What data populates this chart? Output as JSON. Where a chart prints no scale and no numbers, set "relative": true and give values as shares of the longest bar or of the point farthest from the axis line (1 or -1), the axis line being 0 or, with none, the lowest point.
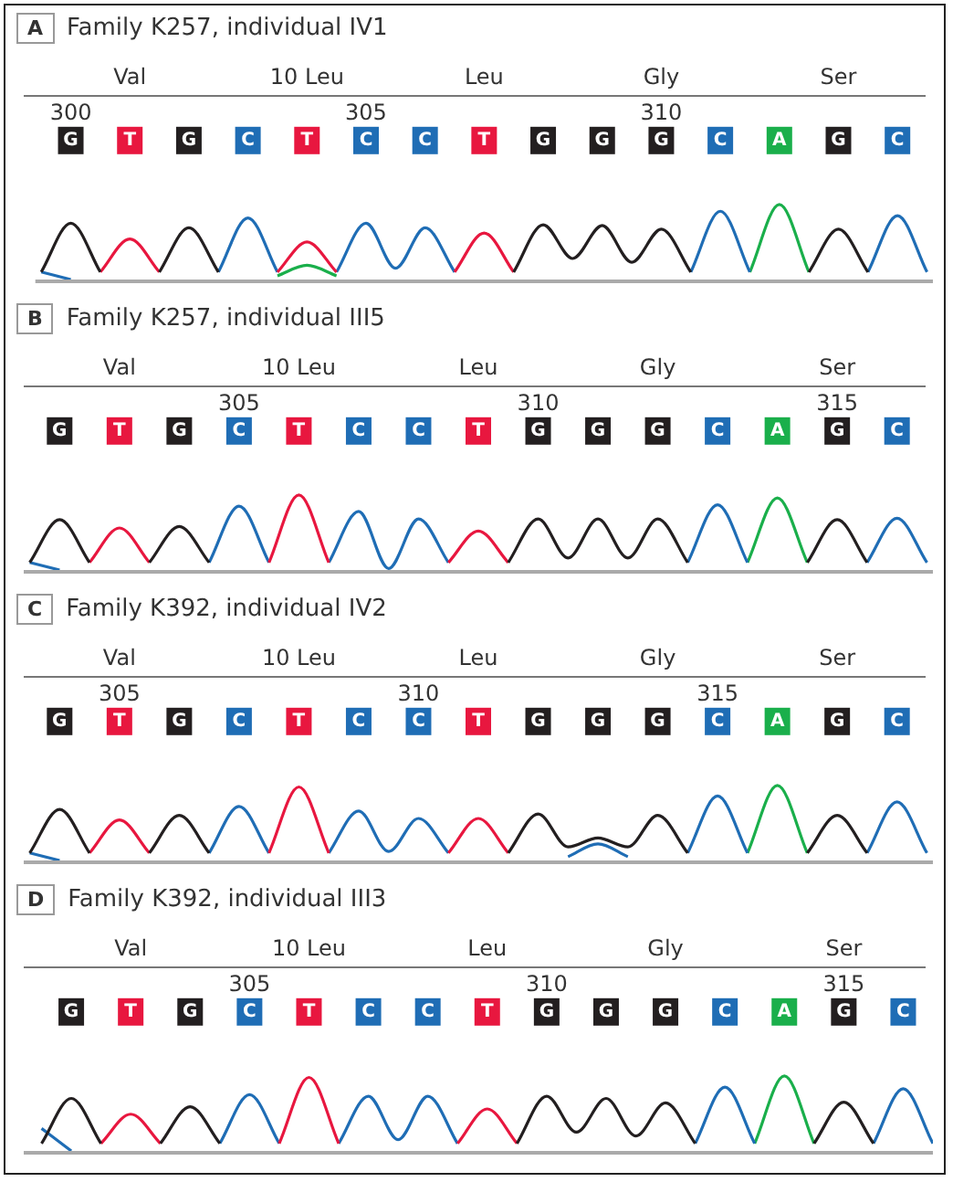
{
  "chart_data": [
    {
      "type": "line",
      "relative": true,
      "marker": "none",
      "title": "Family K257, individual IV1",
      "xlim": [
        299.4,
        314.6
      ],
      "xticks": [
        300,
        305,
        310
      ],
      "x": [
        299.5,
        300,
        300.5,
        301,
        301.5,
        302,
        302.5,
        303,
        303.5,
        304,
        304.5,
        305,
        305.5,
        306,
        306.5,
        307,
        307.5,
        308,
        308.5,
        309,
        309.5,
        310,
        310.5,
        311,
        311.5,
        312,
        312.5,
        313,
        313.5,
        314,
        314.5
      ],
      "series": [
        {
          "color": "#231f20",
          "values": [
            0.1,
            0.75,
            0.1,
            null,
            0.1,
            0.69,
            0.1,
            null,
            null,
            null,
            null,
            null,
            null,
            null,
            null,
            null,
            0.1,
            0.73,
            0.28,
            0.72,
            0.23,
            0.67,
            0.1,
            null,
            null,
            null,
            0.1,
            0.67,
            0.1,
            null,
            null
          ]
        },
        {
          "color": "#e8173f",
          "values": [
            null,
            null,
            0.1,
            0.54,
            0.1,
            null,
            null,
            null,
            0.1,
            0.5,
            0.1,
            null,
            null,
            null,
            0.1,
            0.62,
            0.1,
            null,
            null,
            null,
            null,
            null,
            null,
            null,
            null,
            null,
            null,
            null,
            null,
            null,
            null
          ]
        },
        {
          "color": "#1f6db5",
          "values": [
            0.1,
            0,
            null,
            null,
            null,
            null,
            0.1,
            0.82,
            0.1,
            null,
            0.1,
            0.75,
            0.15,
            0.69,
            0.1,
            null,
            null,
            null,
            null,
            null,
            null,
            null,
            0.1,
            0.91,
            0.1,
            null,
            null,
            null,
            0.1,
            0.85,
            0.1
          ]
        },
        {
          "color": "#1aaf4b",
          "values": [
            null,
            null,
            null,
            null,
            null,
            null,
            null,
            null,
            0.05,
            0.19,
            0.05,
            null,
            null,
            null,
            null,
            null,
            null,
            null,
            null,
            null,
            null,
            null,
            null,
            null,
            0.1,
            1,
            0.1,
            null,
            null,
            null,
            null
          ]
        }
      ],
      "annotations": [
        "A",
        "Val",
        "10 Leu",
        "Leu",
        "Gly",
        "Ser",
        "G",
        "T",
        "G",
        "C",
        "T",
        "C",
        "C",
        "T",
        "G",
        "G",
        "G",
        "C",
        "A",
        "G",
        "C"
      ]
    },
    {
      "type": "line",
      "relative": true,
      "marker": "none",
      "title": "Family K257, individual III5",
      "xlim": [
        301.4,
        316.6
      ],
      "xticks": [
        305,
        310,
        315
      ],
      "x": [
        301.5,
        302,
        302.5,
        303,
        303.5,
        304,
        304.5,
        305,
        305.5,
        306,
        306.5,
        307,
        307.5,
        308,
        308.5,
        309,
        309.5,
        310,
        310.5,
        311,
        311.5,
        312,
        312.5,
        313,
        313.5,
        314,
        314.5,
        315,
        315.5,
        316,
        316.5
      ],
      "series": [
        {
          "color": "#231f20",
          "values": [
            0.1,
            0.67,
            0.1,
            null,
            0.1,
            0.58,
            0.1,
            null,
            null,
            null,
            null,
            null,
            null,
            null,
            null,
            null,
            0.1,
            0.68,
            0.16,
            0.68,
            0.16,
            0.68,
            0.1,
            null,
            null,
            null,
            0.1,
            0.67,
            0.1,
            null,
            null
          ]
        },
        {
          "color": "#e8173f",
          "values": [
            null,
            null,
            0.1,
            0.56,
            0.1,
            null,
            null,
            null,
            0.1,
            1,
            0.1,
            null,
            null,
            null,
            0.1,
            0.52,
            0.1,
            null,
            null,
            null,
            null,
            null,
            null,
            null,
            null,
            null,
            null,
            null,
            null,
            null,
            null
          ]
        },
        {
          "color": "#1f6db5",
          "values": [
            0.1,
            0,
            null,
            null,
            null,
            null,
            0.1,
            0.85,
            0.1,
            null,
            0.1,
            0.78,
            0.02,
            0.68,
            0.1,
            null,
            null,
            null,
            null,
            null,
            null,
            null,
            0.1,
            0.87,
            0.1,
            null,
            null,
            null,
            0.1,
            0.69,
            0.1
          ]
        },
        {
          "color": "#1aaf4b",
          "values": [
            null,
            null,
            null,
            null,
            null,
            null,
            null,
            null,
            null,
            null,
            null,
            null,
            null,
            null,
            null,
            null,
            null,
            null,
            null,
            null,
            null,
            null,
            null,
            null,
            0.1,
            0.96,
            0.1,
            null,
            null,
            null,
            null
          ]
        }
      ],
      "annotations": [
        "B",
        "Val",
        "10 Leu",
        "Leu",
        "Gly",
        "Ser",
        "G",
        "T",
        "G",
        "C",
        "T",
        "C",
        "C",
        "T",
        "G",
        "G",
        "G",
        "C",
        "A",
        "G",
        "C"
      ]
    },
    {
      "type": "line",
      "relative": true,
      "marker": "none",
      "title": "Family K392, individual IV2",
      "xlim": [
        303.4,
        318.6
      ],
      "xticks": [
        305,
        310,
        315
      ],
      "x": [
        303.5,
        304,
        304.5,
        305,
        305.5,
        306,
        306.5,
        307,
        307.5,
        308,
        308.5,
        309,
        309.5,
        310,
        310.5,
        311,
        311.5,
        312,
        312.5,
        313,
        313.5,
        314,
        314.5,
        315,
        315.5,
        316,
        316.5,
        317,
        317.5,
        318,
        318.5
      ],
      "series": [
        {
          "color": "#231f20",
          "values": [
            0.1,
            0.68,
            0.1,
            null,
            0.1,
            0.6,
            0.1,
            null,
            null,
            null,
            null,
            null,
            null,
            null,
            null,
            null,
            0.1,
            0.62,
            0.18,
            0.3,
            0.18,
            0.6,
            0.1,
            null,
            null,
            null,
            0.1,
            0.6,
            0.1,
            null,
            null
          ]
        },
        {
          "color": "#e8173f",
          "values": [
            null,
            null,
            0.1,
            0.54,
            0.1,
            null,
            null,
            null,
            0.1,
            0.98,
            0.1,
            null,
            null,
            null,
            0.1,
            0.56,
            0.1,
            null,
            null,
            null,
            null,
            null,
            null,
            null,
            null,
            null,
            null,
            null,
            null,
            null,
            null
          ]
        },
        {
          "color": "#1f6db5",
          "values": [
            0.1,
            0,
            null,
            null,
            null,
            null,
            0.1,
            0.72,
            0.1,
            null,
            0.1,
            0.66,
            0.12,
            0.56,
            0.1,
            null,
            null,
            null,
            0.05,
            0.22,
            0.05,
            null,
            0.1,
            0.86,
            0.1,
            null,
            null,
            null,
            0.1,
            0.78,
            0.1
          ]
        },
        {
          "color": "#1aaf4b",
          "values": [
            null,
            null,
            null,
            null,
            null,
            null,
            null,
            null,
            null,
            null,
            null,
            null,
            null,
            null,
            null,
            null,
            null,
            null,
            null,
            null,
            null,
            null,
            null,
            null,
            0.1,
            1,
            0.1,
            null,
            null,
            null,
            null
          ]
        }
      ],
      "annotations": [
        "C",
        "Val",
        "10 Leu",
        "Leu",
        "Gly",
        "Ser",
        "G",
        "T",
        "G",
        "C",
        "T",
        "C",
        "C",
        "T",
        "G",
        "G",
        "G",
        "C",
        "A",
        "G",
        "C"
      ]
    },
    {
      "type": "line",
      "relative": true,
      "marker": "none",
      "title": "Family K392, individual III3",
      "xlim": [
        301.2,
        316.5
      ],
      "xticks": [
        305,
        310,
        315
      ],
      "x": [
        301.5,
        302,
        302.5,
        303,
        303.5,
        304,
        304.5,
        305,
        305.5,
        306,
        306.5,
        307,
        307.5,
        308,
        308.5,
        309,
        309.5,
        310,
        310.5,
        311,
        311.5,
        312,
        312.5,
        313,
        313.5,
        314,
        314.5,
        315,
        315.5,
        316,
        316.5
      ],
      "series": [
        {
          "color": "#231f20",
          "values": [
            0.1,
            0.7,
            0.1,
            null,
            0.1,
            0.59,
            0.1,
            null,
            null,
            null,
            null,
            null,
            null,
            null,
            null,
            null,
            0.1,
            0.73,
            0.25,
            0.7,
            0.2,
            0.64,
            0.1,
            null,
            null,
            null,
            0.1,
            0.65,
            0.1,
            null,
            null
          ]
        },
        {
          "color": "#e8173f",
          "values": [
            null,
            null,
            0.1,
            0.49,
            0.1,
            null,
            null,
            null,
            0.1,
            0.98,
            0.1,
            null,
            null,
            null,
            0.1,
            0.56,
            0.1,
            null,
            null,
            null,
            null,
            null,
            null,
            null,
            null,
            null,
            null,
            null,
            null,
            null,
            null
          ]
        },
        {
          "color": "#1f6db5",
          "values": [
            0.3,
            0,
            null,
            null,
            null,
            null,
            0.1,
            0.75,
            0.1,
            null,
            0.1,
            0.73,
            0.15,
            0.73,
            0.1,
            null,
            null,
            null,
            null,
            null,
            null,
            null,
            0.1,
            0.85,
            0.1,
            null,
            null,
            null,
            0.1,
            0.83,
            0.1
          ]
        },
        {
          "color": "#1aaf4b",
          "values": [
            null,
            null,
            null,
            null,
            null,
            null,
            null,
            null,
            null,
            null,
            null,
            null,
            null,
            null,
            null,
            null,
            null,
            null,
            null,
            null,
            null,
            null,
            null,
            null,
            0.1,
            1,
            0.1,
            null,
            null,
            null,
            null
          ]
        }
      ],
      "annotations": [
        "D",
        "Val",
        "10 Leu",
        "Leu",
        "Gly",
        "Ser",
        "G",
        "T",
        "G",
        "C",
        "T",
        "C",
        "C",
        "T",
        "G",
        "G",
        "G",
        "C",
        "A",
        "G",
        "C"
      ]
    }
  ]
}
